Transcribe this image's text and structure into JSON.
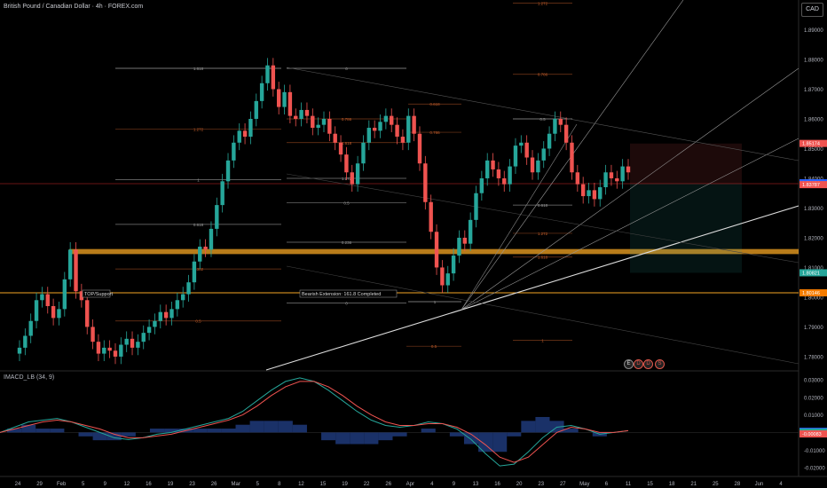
{
  "header": {
    "title": "British Pound / Canadian Dollar · 4h · FOREX.com",
    "currency": "CAD"
  },
  "indicator": {
    "title": "IMACD_LB (34, 9)"
  },
  "colors": {
    "up": "#26a69a",
    "down": "#ef5350",
    "hline": "#ff9800",
    "sr_band": "#f5a623",
    "grid": "#1a1a1a",
    "text": "#b2b5be"
  },
  "chart_data": [
    {
      "type": "candlestick",
      "title": "British Pound / Canadian Dollar · 4h · FOREX.com",
      "x_labels": [
        "24",
        "29",
        "Feb",
        "5",
        "9",
        "12",
        "16",
        "19",
        "23",
        "26",
        "Mar",
        "5",
        "8",
        "12",
        "15",
        "19",
        "22",
        "26",
        "Apr",
        "4",
        "9",
        "13",
        "16",
        "20",
        "23",
        "27",
        "May",
        "6",
        "11",
        "15",
        "18",
        "21",
        "25",
        "28",
        "Jun",
        "4"
      ],
      "y_ticks": [
        "1.89000",
        "1.88000",
        "1.87000",
        "1.86000",
        "1.85000",
        "1.84000",
        "1.83000",
        "1.82000",
        "1.81000",
        "1.80000",
        "1.79000",
        "1.78000"
      ],
      "ylim": [
        1.7755,
        1.9
      ],
      "price_flags": [
        {
          "value": "1.85174",
          "color": "#ef5350"
        },
        {
          "value": "1.83850",
          "color": "#2962ff"
        },
        {
          "value": "1.83787",
          "color": "#ef5350"
        },
        {
          "value": "1.80821",
          "color": "#26a69a"
        },
        {
          "value": "1.80146",
          "color": "#f57c00"
        }
      ],
      "annotations": [
        {
          "text": "TOP/Support"
        },
        {
          "text": "Bearish Extension: 161.8 Completed"
        }
      ],
      "fib_labels": [
        "1.618",
        "1.272",
        "1",
        "0.618",
        "0.382",
        "0.5",
        "0",
        "0.786",
        "1.618",
        "1.272",
        "0.5",
        "0.236",
        "0",
        "0.618",
        "0.786",
        "1",
        "1.272",
        "0.786",
        "0.5",
        "0.618",
        "1.272",
        "1.618",
        "1",
        "0.5",
        "0.236",
        "0",
        "1.618",
        "0.786"
      ],
      "close": [
        1.783,
        1.787,
        1.792,
        1.799,
        1.801,
        1.797,
        1.793,
        1.796,
        1.806,
        1.816,
        1.802,
        1.799,
        1.79,
        1.785,
        1.781,
        1.783,
        1.782,
        1.78,
        1.784,
        1.786,
        1.783,
        1.785,
        1.788,
        1.79,
        1.792,
        1.795,
        1.793,
        1.796,
        1.799,
        1.801,
        1.805,
        1.812,
        1.817,
        1.816,
        1.823,
        1.831,
        1.839,
        1.846,
        1.852,
        1.856,
        1.854,
        1.86,
        1.866,
        1.872,
        1.878,
        1.87,
        1.864,
        1.869,
        1.861,
        1.86,
        1.863,
        1.861,
        1.857,
        1.858,
        1.86,
        1.855,
        1.852,
        1.848,
        1.842,
        1.838,
        1.845,
        1.852,
        1.857,
        1.856,
        1.859,
        1.861,
        1.858,
        1.854,
        1.852,
        1.861,
        1.855,
        1.845,
        1.832,
        1.822,
        1.81,
        1.804,
        1.808,
        1.814,
        1.82,
        1.818,
        1.826,
        1.835,
        1.84,
        1.846,
        1.843,
        1.84,
        1.838,
        1.844,
        1.851,
        1.852,
        1.847,
        1.842,
        1.846,
        1.85,
        1.855,
        1.86,
        1.858,
        1.852,
        1.842,
        1.838,
        1.834,
        1.836,
        1.833,
        1.837,
        1.842,
        1.84,
        1.839,
        1.844,
        1.842
      ]
    },
    {
      "type": "line",
      "title": "IMACD_LB (34, 9)",
      "y_ticks": [
        "0.03000",
        "0.02000",
        "0.01000",
        "0.00000",
        "-0.01000",
        "-0.02000"
      ],
      "ylim": [
        -0.025,
        0.034
      ],
      "price_flags": [
        {
          "value": "0.00067",
          "color": "#2962ff"
        },
        {
          "value": "0.00020",
          "color": "#26a69a"
        },
        {
          "value": "-0.00083",
          "color": "#ef5350"
        }
      ],
      "series": [
        {
          "values": [
            0.0,
            0.003,
            0.006,
            0.007,
            0.008,
            0.006,
            0.003,
            0.0,
            -0.003,
            -0.004,
            -0.003,
            -0.001,
            0.0,
            0.002,
            0.004,
            0.006,
            0.008,
            0.012,
            0.018,
            0.024,
            0.029,
            0.031,
            0.029,
            0.024,
            0.018,
            0.012,
            0.007,
            0.004,
            0.003,
            0.004,
            0.006,
            0.005,
            0.002,
            -0.004,
            -0.012,
            -0.019,
            -0.018,
            -0.011,
            -0.003,
            0.003,
            0.004,
            0.002,
            -0.001,
            0.0,
            0.001
          ]
        },
        {
          "values": [
            0.0,
            0.002,
            0.004,
            0.006,
            0.007,
            0.006,
            0.004,
            0.002,
            -0.001,
            -0.003,
            -0.003,
            -0.002,
            -0.001,
            0.001,
            0.003,
            0.005,
            0.007,
            0.01,
            0.015,
            0.021,
            0.026,
            0.029,
            0.029,
            0.026,
            0.021,
            0.015,
            0.01,
            0.006,
            0.004,
            0.004,
            0.005,
            0.005,
            0.003,
            -0.001,
            -0.007,
            -0.014,
            -0.017,
            -0.014,
            -0.007,
            0.0,
            0.003,
            0.002,
            0.0,
            0.0,
            0.001
          ]
        }
      ]
    }
  ]
}
